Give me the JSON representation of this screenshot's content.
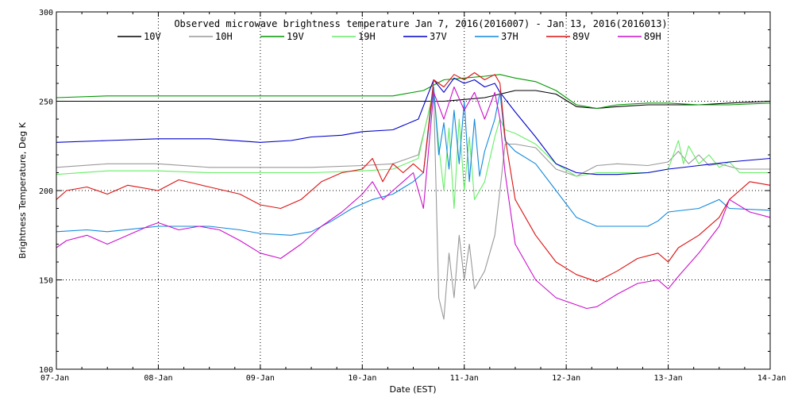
{
  "chart_data": {
    "type": "line",
    "title": "Observed microwave brightness temperature Jan  7, 2016(2016007) - Jan 13, 2016(2016013)",
    "xlabel": "Date (EST)",
    "ylabel": "Brightness Temperature, Deg K",
    "xlim": [
      0,
      7
    ],
    "ylim": [
      100,
      300
    ],
    "x_tick_labels": [
      "07-Jan",
      "08-Jan",
      "09-Jan",
      "10-Jan",
      "11-Jan",
      "12-Jan",
      "13-Jan",
      "14-Jan"
    ],
    "y_ticks": [
      100,
      150,
      200,
      250,
      300
    ],
    "x_unit": "days since 07-Jan",
    "grid": "dotted",
    "legend_position": "top",
    "series": [
      {
        "name": "10V",
        "color": "#000000",
        "x": [
          0,
          0.5,
          1,
          1.5,
          2,
          2.5,
          3,
          3.3,
          3.6,
          3.8,
          4.0,
          4.2,
          4.35,
          4.5,
          4.7,
          4.9,
          5.1,
          5.3,
          5.5,
          5.8,
          6.0,
          6.3,
          6.6,
          7.0
        ],
        "y": [
          250,
          250,
          250,
          250,
          250,
          250,
          250,
          250,
          250,
          250,
          251,
          252,
          254,
          256,
          256,
          254,
          247,
          246,
          247,
          248,
          248,
          248,
          249,
          250
        ]
      },
      {
        "name": "10H",
        "color": "#999999",
        "x": [
          0,
          0.5,
          1,
          1.5,
          2,
          2.5,
          3,
          3.3,
          3.55,
          3.7,
          3.75,
          3.8,
          3.85,
          3.9,
          3.95,
          4.0,
          4.05,
          4.1,
          4.2,
          4.3,
          4.35,
          4.4,
          4.5,
          4.7,
          4.9,
          5.1,
          5.3,
          5.5,
          5.8,
          6.0,
          6.1,
          6.2,
          6.3,
          6.4,
          6.5,
          6.7,
          7.0
        ],
        "y": [
          213,
          215,
          215,
          213,
          213,
          213,
          214,
          215,
          220,
          255,
          140,
          128,
          165,
          140,
          175,
          150,
          170,
          145,
          155,
          175,
          200,
          226,
          226,
          224,
          212,
          208,
          214,
          215,
          214,
          216,
          222,
          215,
          220,
          214,
          215,
          212,
          212
        ]
      },
      {
        "name": "19V",
        "color": "#009900",
        "x": [
          0,
          0.5,
          1,
          1.5,
          2,
          2.5,
          3,
          3.3,
          3.6,
          3.8,
          4.0,
          4.2,
          4.35,
          4.5,
          4.7,
          4.9,
          5.1,
          5.3,
          5.5,
          5.8,
          6.0,
          6.3,
          6.6,
          7.0
        ],
        "y": [
          252,
          253,
          253,
          253,
          253,
          253,
          253,
          253,
          256,
          262,
          263,
          264,
          265,
          263,
          261,
          256,
          248,
          246,
          248,
          249,
          249,
          248,
          248,
          249
        ]
      },
      {
        "name": "19H",
        "color": "#66ee66",
        "x": [
          0,
          0.5,
          1,
          1.5,
          2,
          2.5,
          3,
          3.3,
          3.55,
          3.7,
          3.75,
          3.8,
          3.85,
          3.9,
          3.95,
          4.0,
          4.05,
          4.1,
          4.2,
          4.3,
          4.35,
          4.4,
          4.5,
          4.7,
          4.9,
          5.1,
          5.3,
          5.5,
          5.8,
          6.0,
          6.1,
          6.15,
          6.2,
          6.3,
          6.4,
          6.5,
          6.6,
          6.7,
          7.0
        ],
        "y": [
          209,
          211,
          211,
          210,
          210,
          210,
          211,
          212,
          218,
          257,
          225,
          200,
          235,
          190,
          240,
          200,
          230,
          195,
          205,
          230,
          240,
          234,
          232,
          226,
          215,
          208,
          210,
          210,
          210,
          212,
          228,
          215,
          225,
          215,
          220,
          213,
          216,
          210,
          210
        ]
      },
      {
        "name": "37V",
        "color": "#0000cc",
        "x": [
          0,
          0.5,
          1,
          1.5,
          2,
          2.3,
          2.5,
          2.8,
          3,
          3.3,
          3.55,
          3.7,
          3.8,
          3.9,
          4.0,
          4.1,
          4.2,
          4.3,
          4.35,
          4.5,
          4.7,
          4.9,
          5.1,
          5.3,
          5.5,
          5.8,
          6.0,
          6.3,
          6.6,
          7.0
        ],
        "y": [
          227,
          228,
          229,
          229,
          227,
          228,
          230,
          231,
          233,
          234,
          240,
          262,
          255,
          263,
          260,
          262,
          258,
          260,
          255,
          244,
          230,
          215,
          210,
          209,
          209,
          210,
          212,
          214,
          216,
          218
        ]
      },
      {
        "name": "37H",
        "color": "#1188dd",
        "x": [
          0,
          0.3,
          0.5,
          1,
          1.3,
          1.5,
          1.8,
          2,
          2.3,
          2.5,
          2.7,
          2.9,
          3.1,
          3.3,
          3.5,
          3.6,
          3.7,
          3.75,
          3.8,
          3.85,
          3.9,
          3.95,
          4.0,
          4.05,
          4.1,
          4.15,
          4.2,
          4.3,
          4.35,
          4.4,
          4.5,
          4.7,
          4.9,
          5.1,
          5.3,
          5.5,
          5.8,
          5.9,
          6.0,
          6.3,
          6.5,
          6.6,
          7.0
        ],
        "y": [
          177,
          178,
          177,
          180,
          180,
          180,
          178,
          176,
          175,
          177,
          183,
          190,
          195,
          198,
          205,
          210,
          258,
          220,
          238,
          212,
          245,
          215,
          250,
          205,
          240,
          208,
          222,
          240,
          255,
          228,
          222,
          215,
          200,
          185,
          180,
          180,
          180,
          183,
          188,
          190,
          195,
          190,
          189
        ]
      },
      {
        "name": "89V",
        "color": "#dd1111",
        "x": [
          0,
          0.1,
          0.3,
          0.5,
          0.7,
          1.0,
          1.2,
          1.5,
          1.8,
          2.0,
          2.2,
          2.4,
          2.6,
          2.8,
          3.0,
          3.1,
          3.2,
          3.3,
          3.4,
          3.5,
          3.6,
          3.7,
          3.8,
          3.9,
          4.0,
          4.1,
          4.2,
          4.3,
          4.35,
          4.4,
          4.5,
          4.7,
          4.9,
          5.1,
          5.3,
          5.5,
          5.7,
          5.9,
          6.0,
          6.1,
          6.3,
          6.5,
          6.6,
          6.8,
          7.0
        ],
        "y": [
          195,
          200,
          202,
          198,
          203,
          200,
          206,
          202,
          198,
          192,
          190,
          195,
          205,
          210,
          212,
          218,
          205,
          215,
          210,
          215,
          210,
          262,
          258,
          265,
          262,
          266,
          262,
          265,
          260,
          230,
          195,
          175,
          160,
          153,
          149,
          155,
          162,
          165,
          160,
          168,
          175,
          185,
          195,
          205,
          203
        ]
      },
      {
        "name": "89H",
        "color": "#cc11cc",
        "x": [
          0,
          0.1,
          0.3,
          0.5,
          0.7,
          0.9,
          1.0,
          1.2,
          1.4,
          1.6,
          1.8,
          2.0,
          2.2,
          2.4,
          2.6,
          2.8,
          3.0,
          3.1,
          3.2,
          3.3,
          3.4,
          3.5,
          3.6,
          3.7,
          3.8,
          3.9,
          4.0,
          4.1,
          4.2,
          4.3,
          4.35,
          4.4,
          4.5,
          4.7,
          4.9,
          5.1,
          5.2,
          5.3,
          5.5,
          5.7,
          5.9,
          6.0,
          6.1,
          6.3,
          6.5,
          6.6,
          6.8,
          7.0
        ],
        "y": [
          168,
          172,
          175,
          170,
          175,
          180,
          182,
          178,
          180,
          178,
          172,
          165,
          162,
          170,
          180,
          188,
          198,
          205,
          195,
          200,
          205,
          210,
          190,
          255,
          240,
          258,
          245,
          255,
          240,
          255,
          240,
          210,
          170,
          150,
          140,
          136,
          134,
          135,
          142,
          148,
          150,
          145,
          152,
          165,
          180,
          195,
          188,
          185
        ]
      }
    ]
  }
}
